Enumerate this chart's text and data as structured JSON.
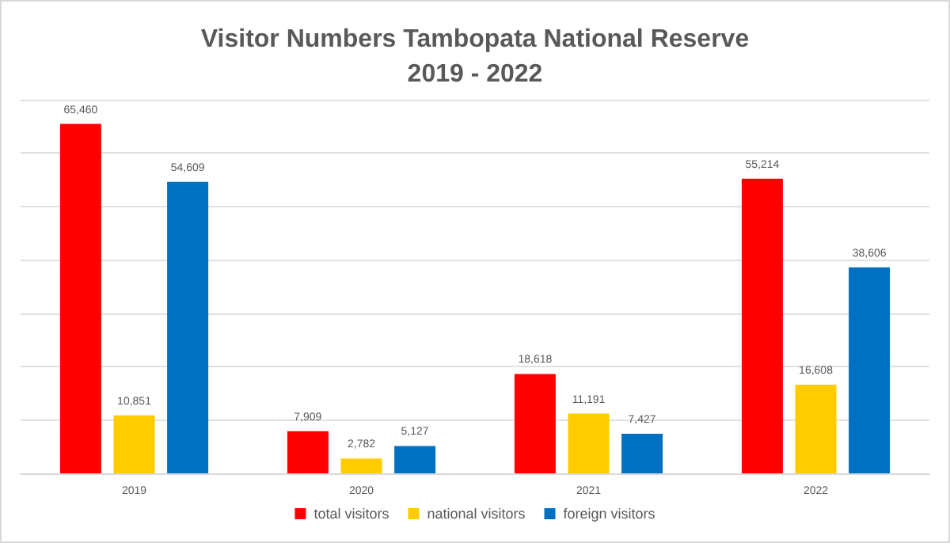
{
  "chart_data": {
    "type": "bar",
    "title": "Visitor Numbers Tambopata National Reserve\n2019 - 2022",
    "categories": [
      "2019",
      "2020",
      "2021",
      "2022"
    ],
    "series": [
      {
        "name": "total visitors",
        "color": "#ff0000",
        "values": [
          65460,
          7909,
          18618,
          55214
        ],
        "value_labels": [
          "65,460",
          "7,909",
          "18,618",
          "55,214"
        ]
      },
      {
        "name": "national visitors",
        "color": "#ffcc00",
        "values": [
          10851,
          2782,
          11191,
          16608
        ],
        "value_labels": [
          "10,851",
          "2,782",
          "11,191",
          "16,608"
        ]
      },
      {
        "name": "foreign visitors",
        "color": "#0070c0",
        "values": [
          54609,
          5127,
          7427,
          38606
        ],
        "value_labels": [
          "54,609",
          "5,127",
          "7,427",
          "38,606"
        ]
      }
    ],
    "ylim": [
      0,
      70000
    ],
    "yticks": [
      {
        "value": 0,
        "label": null
      },
      {
        "value": 10000,
        "label": null
      },
      {
        "value": 20000,
        "label": null
      },
      {
        "value": 30000,
        "label": null
      },
      {
        "value": 40000,
        "label": null
      },
      {
        "value": 50000,
        "label": null
      },
      {
        "value": 60000,
        "label": null
      },
      {
        "value": 70000,
        "label": null
      }
    ],
    "tick_labels": "x",
    "grid": "y",
    "legend": "bottom"
  }
}
